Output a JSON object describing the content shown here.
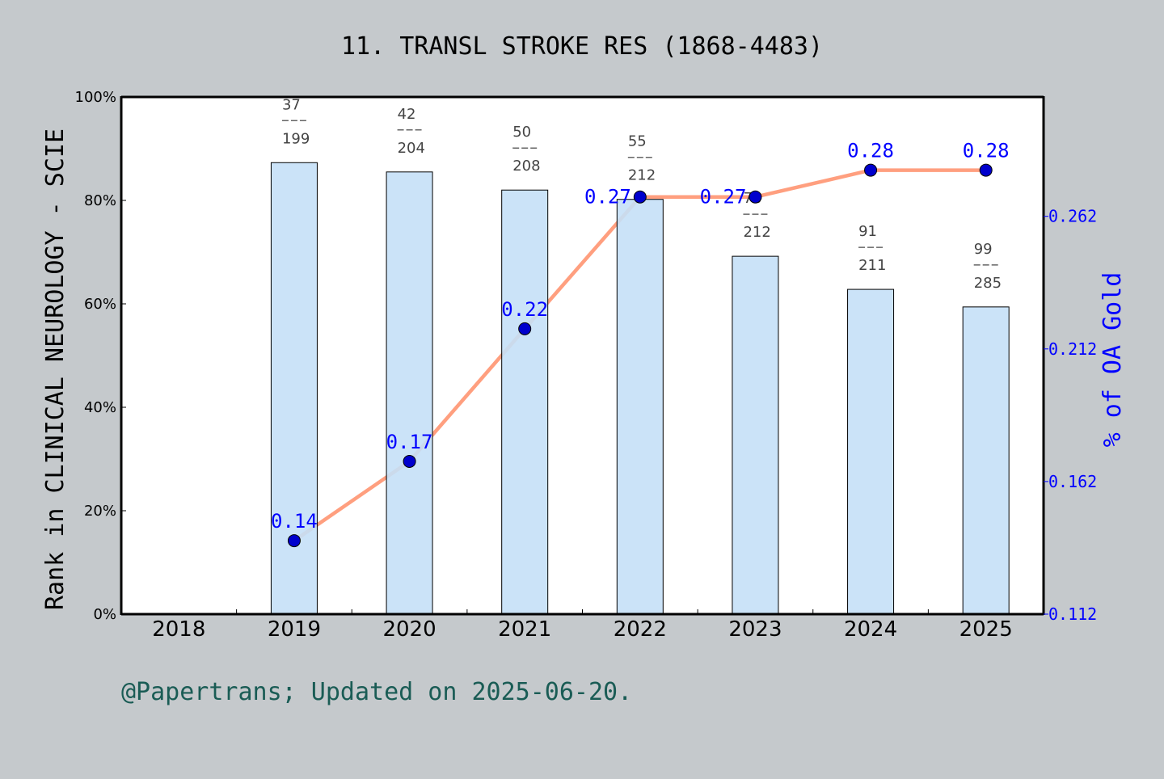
{
  "chart_data": {
    "type": "bar+line",
    "title": "11. TRANSL STROKE RES (1868-4483)",
    "ylabel": "Rank in CLINICAL NEUROLOGY - SCIE",
    "y2label": "% of OA Gold",
    "categories": [
      "2018",
      "2019",
      "2020",
      "2021",
      "2022",
      "2023",
      "2024",
      "2025"
    ],
    "ylim": [
      0,
      100
    ],
    "yticks": [
      "0%",
      "20%",
      "40%",
      "60%",
      "80%",
      "100%"
    ],
    "y2lim": [
      0.112,
      0.307
    ],
    "y2ticks": [
      "0.112",
      "0.162",
      "0.212",
      "0.262"
    ],
    "bars": {
      "values": [
        null,
        87.3,
        85.5,
        82.0,
        80.2,
        69.2,
        62.8,
        59.4
      ],
      "rank": [
        null,
        "37",
        "42",
        "50",
        "55",
        "78",
        "91",
        "99"
      ],
      "total": [
        null,
        "199",
        "204",
        "208",
        "212",
        "212",
        "211",
        "285"
      ],
      "color": "#c5e0f7"
    },
    "line": {
      "values": [
        null,
        0.1397,
        0.1696,
        0.2196,
        0.2693,
        0.2693,
        0.2794,
        0.2794
      ],
      "labels": [
        null,
        "0.14",
        "0.17",
        "0.22",
        "0.27",
        "0.27",
        "0.28",
        "0.28"
      ],
      "color": "#ff9f7f",
      "marker_color": "#0000cd"
    },
    "grid": false
  },
  "footer": "@Papertrans; Updated on 2025-06-20."
}
